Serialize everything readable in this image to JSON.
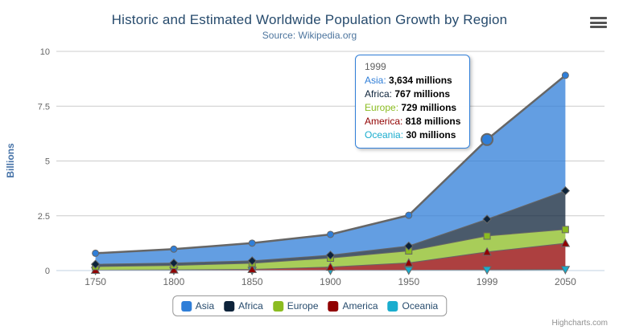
{
  "header": {
    "title": "Historic and Estimated Worldwide Population Growth by Region",
    "subtitle": "Source: Wikipedia.org",
    "menu_icon": "hamburger-menu-icon"
  },
  "chart_data": {
    "type": "area",
    "stacking": "normal",
    "title": "Historic and Estimated Worldwide Population Growth by Region",
    "subtitle": "Source: Wikipedia.org",
    "categories": [
      "1750",
      "1800",
      "1850",
      "1900",
      "1950",
      "1999",
      "2050"
    ],
    "xlabel": "",
    "ylabel": "Billions",
    "unit": "millions",
    "ylim": [
      0,
      10
    ],
    "yticks": [
      0,
      2.5,
      5,
      7.5,
      10
    ],
    "ytick_labels": [
      "0",
      "2.5",
      "5",
      "7.5",
      "10"
    ],
    "grid": true,
    "legend_position": "bottom",
    "line_color": "#666666",
    "fill_opacity": 0.75,
    "series": [
      {
        "name": "Asia",
        "color": "#2f7ed8",
        "marker": "circle",
        "values": [
          502,
          635,
          809,
          947,
          1402,
          3634,
          5268
        ]
      },
      {
        "name": "Africa",
        "color": "#0d233a",
        "marker": "diamond",
        "values": [
          106,
          107,
          111,
          133,
          221,
          767,
          1766
        ]
      },
      {
        "name": "Europe",
        "color": "#8bbc21",
        "marker": "square",
        "values": [
          163,
          203,
          276,
          408,
          547,
          729,
          628
        ]
      },
      {
        "name": "America",
        "color": "#910000",
        "marker": "triangle",
        "values": [
          18,
          31,
          54,
          156,
          339,
          818,
          1201
        ]
      },
      {
        "name": "Oceania",
        "color": "#1aadce",
        "marker": "triangle-down",
        "values": [
          2,
          2,
          2,
          6,
          13,
          30,
          46
        ]
      }
    ]
  },
  "tooltip": {
    "header": "1999",
    "hover": {
      "series": "Asia",
      "category": "1999"
    },
    "rows": [
      {
        "series": "Asia",
        "value": "3,634 millions"
      },
      {
        "series": "Africa",
        "value": "767 millions"
      },
      {
        "series": "Europe",
        "value": "729 millions"
      },
      {
        "series": "America",
        "value": "818 millions"
      },
      {
        "series": "Oceania",
        "value": "30 millions"
      }
    ]
  },
  "credits": "Highcharts.com",
  "colors": {
    "title": "#274b6d",
    "subtitle": "#4d759e",
    "axis_label": "#666666",
    "y_axis_title": "#4572A7",
    "gridline": "#cccccc",
    "axis_line": "#c0d0e0",
    "tooltip_border": "#2f7ed8",
    "legend_text": "#274b6d"
  }
}
